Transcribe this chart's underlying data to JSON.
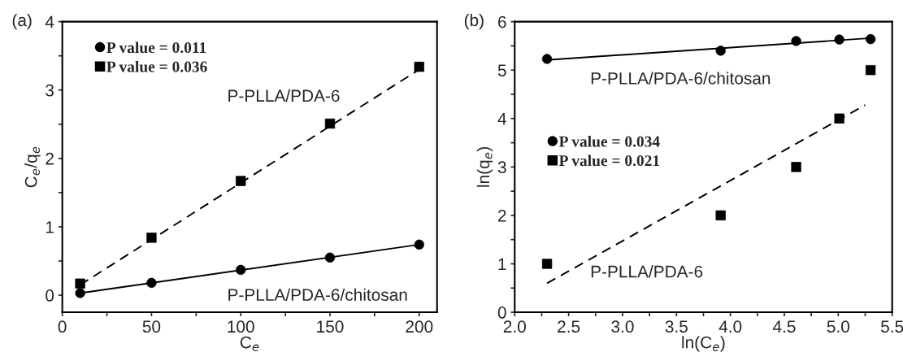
{
  "chart_data": [
    {
      "type": "scatter",
      "xlabel": "C$_{e}$",
      "ylabel": "C$_{e}$/q$_{e}$",
      "xlim": [
        0,
        210
      ],
      "ylim": [
        -0.25,
        4
      ],
      "xticks": [
        0,
        {
          "value": 25,
          "label": null
        },
        50,
        {
          "value": 75,
          "label": null
        },
        100,
        {
          "value": 125,
          "label": null
        },
        150,
        {
          "value": 175,
          "label": null
        },
        200
      ],
      "yticks": [
        0,
        {
          "value": 0.5,
          "label": null
        },
        1,
        {
          "value": 1.5,
          "label": null
        },
        2,
        {
          "value": 2.5,
          "label": null
        },
        3,
        {
          "value": 3.5,
          "label": null
        },
        4
      ],
      "grid": false,
      "legend": "top left",
      "series": [
        {
          "name": "P value = 0.011",
          "marker": "circle",
          "color": "#000000",
          "x": [
            10,
            50,
            100,
            150,
            200
          ],
          "values": [
            0.03,
            0.18,
            0.37,
            0.55,
            0.74
          ]
        },
        {
          "name": "P value = 0.036",
          "marker": "square",
          "color": "#000000",
          "x": [
            10,
            50,
            100,
            150,
            200
          ],
          "values": [
            0.17,
            0.84,
            1.67,
            2.51,
            3.34
          ]
        },
        {
          "type": "line",
          "line_style": "solid",
          "color": "#000000",
          "x": [
            10,
            200
          ],
          "values": [
            0.03,
            0.74
          ]
        },
        {
          "type": "line",
          "line_style": "dashed",
          "color": "#000000",
          "x": [
            10,
            200
          ],
          "values": [
            0.15,
            3.3
          ]
        }
      ],
      "annotations": [
        "(a)",
        "P-PLLA/PDA-6",
        "P-PLLA/PDA-6/chitosan"
      ]
    },
    {
      "type": "scatter",
      "xlabel": "ln(C$_{e}$)",
      "ylabel": "ln(q$_{e}$)",
      "xlim": [
        2.0,
        5.5
      ],
      "ylim": [
        0,
        6
      ],
      "xticks": [
        {
          "value": 2,
          "label": "2.0"
        },
        {
          "value": 2.25,
          "label": null
        },
        2.5,
        {
          "value": 2.75,
          "label": null
        },
        {
          "value": 3,
          "label": "3.0"
        },
        {
          "value": 3.25,
          "label": null
        },
        3.5,
        {
          "value": 3.75,
          "label": null
        },
        {
          "value": 4,
          "label": "4.0"
        },
        {
          "value": 4.25,
          "label": null
        },
        4.5,
        {
          "value": 4.75,
          "label": null
        },
        {
          "value": 5,
          "label": "5.0"
        },
        {
          "value": 5.25,
          "label": null
        },
        5.5
      ],
      "yticks": [
        0,
        {
          "value": 0.5,
          "label": null
        },
        1,
        {
          "value": 1.5,
          "label": null
        },
        2,
        {
          "value": 2.5,
          "label": null
        },
        3,
        {
          "value": 3.5,
          "label": null
        },
        4,
        {
          "value": 4.5,
          "label": null
        },
        5,
        {
          "value": 5.5,
          "label": null
        },
        6
      ],
      "grid": false,
      "legend": "left",
      "series": [
        {
          "name": "P value = 0.034",
          "marker": "circle",
          "color": "#000000",
          "x": [
            2.3,
            3.91,
            4.61,
            5.01,
            5.3
          ],
          "values": [
            5.23,
            5.4,
            5.6,
            5.63,
            5.64
          ]
        },
        {
          "name": "P value = 0.021",
          "marker": "square",
          "color": "#000000",
          "x": [
            2.3,
            3.91,
            4.61,
            5.01,
            5.3
          ],
          "values": [
            1,
            2,
            3,
            4,
            5
          ]
        },
        {
          "type": "line",
          "line_style": "solid",
          "color": "#000000",
          "x": [
            2.3,
            5.3
          ],
          "values": [
            5.21,
            5.66
          ]
        },
        {
          "type": "line",
          "line_style": "dashed",
          "color": "#000000",
          "x": [
            2.3,
            5.25
          ],
          "values": [
            0.6,
            4.28
          ]
        }
      ],
      "annotations": [
        "(b)",
        "P-PLLA/PDA-6/chitosan",
        "P-PLLA/PDA-6"
      ]
    }
  ]
}
